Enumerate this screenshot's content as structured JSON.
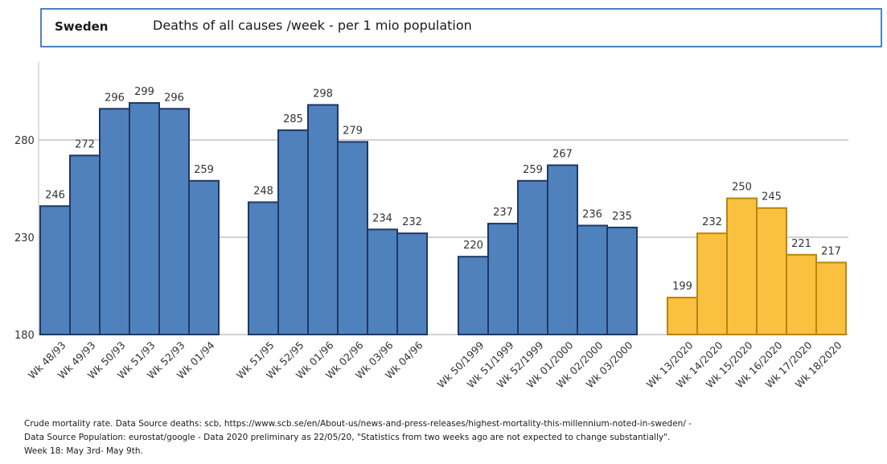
{
  "title": {
    "country": "Sweden",
    "text": "Deaths of all causes /week  - per 1 mio population"
  },
  "colors": {
    "blue": "#4f81bd",
    "blue_border": "#1f3864",
    "yellow": "#fac040",
    "yellow_border": "#b8860b"
  },
  "chart_data": {
    "type": "bar",
    "ylim": [
      180,
      320
    ],
    "yticks": [
      180,
      230,
      280
    ],
    "grid": true,
    "groups": [
      {
        "color": "blue",
        "categories": [
          "Wk 48/93",
          "Wk 49/93",
          "Wk 50/93",
          "Wk 51/93",
          "Wk 52/93",
          "Wk 01/94"
        ],
        "values": [
          246,
          272,
          296,
          299,
          296,
          259
        ]
      },
      {
        "color": "blue",
        "categories": [
          "Wk 51/95",
          "Wk 52/95",
          "Wk 01/96",
          "Wk 02/96",
          "Wk 03/96",
          "Wk 04/96"
        ],
        "values": [
          248,
          285,
          298,
          279,
          234,
          232
        ]
      },
      {
        "color": "blue",
        "categories": [
          "Wk 50/1999",
          "Wk 51/1999",
          "Wk 52/1999",
          "Wk 01/2000",
          "Wk 02/2000",
          "Wk 03/2000"
        ],
        "values": [
          220,
          237,
          259,
          267,
          236,
          235
        ]
      },
      {
        "color": "yellow",
        "categories": [
          "Wk 13/2020",
          "Wk 14/2020",
          "Wk 15/2020",
          "Wk 16/2020",
          "Wk 17/2020",
          "Wk 18/2020"
        ],
        "values": [
          199,
          232,
          250,
          245,
          221,
          217
        ]
      }
    ]
  },
  "footnotes": [
    "Crude mortality rate. Data Source deaths: scb, https://www.scb.se/en/About-us/news-and-press-releases/highest-mortality-this-millennium-noted-in-sweden/ -",
    "Data Source Population: eurostat/google -  Data 2020 preliminary as 22/05/20, \"Statistics from two weeks ago are not expected to change substantially\".",
    "Week 18: May 3rd- May 9th."
  ]
}
